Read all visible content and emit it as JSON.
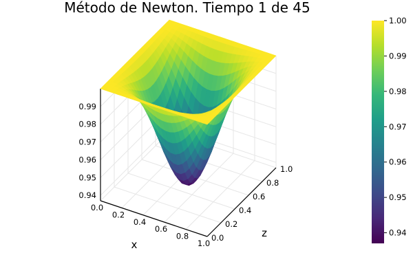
{
  "chart_data": {
    "type": "surface",
    "title": "Método de Newton. Tiempo 1 de 45",
    "xlabel": "x",
    "ylabel": "z",
    "zlabel": "",
    "x_range": [
      0.0,
      1.0
    ],
    "y_range": [
      0.0,
      1.0
    ],
    "z_range": [
      0.937,
      1.0
    ],
    "x_ticks": [
      "0.0",
      "0.2",
      "0.4",
      "0.6",
      "0.8",
      "1.0"
    ],
    "y_ticks": [
      "0.0",
      "0.2",
      "0.4",
      "0.6",
      "0.8",
      "1.0"
    ],
    "z_ticks": [
      "0.94",
      "0.95",
      "0.96",
      "0.97",
      "0.98",
      "0.99"
    ],
    "colorbar": {
      "colormap": "viridis",
      "range": [
        0.937,
        1.0
      ],
      "ticks": [
        "0.94",
        "0.95",
        "0.96",
        "0.97",
        "0.98",
        "0.99",
        "1.00"
      ]
    },
    "surface": {
      "formula": "1 - 0.063 * sin(pi*x)^2 * sin(pi*z)^2",
      "grid_n": 25,
      "minimum": 0.937,
      "maximum": 1.0
    },
    "grid": true,
    "legend": "none"
  },
  "colors": {
    "viridis": [
      "#440154",
      "#482878",
      "#3e4a89",
      "#31688e",
      "#26828e",
      "#1f9e89",
      "#35b779",
      "#6ece58",
      "#b5de2b",
      "#fde725"
    ]
  }
}
